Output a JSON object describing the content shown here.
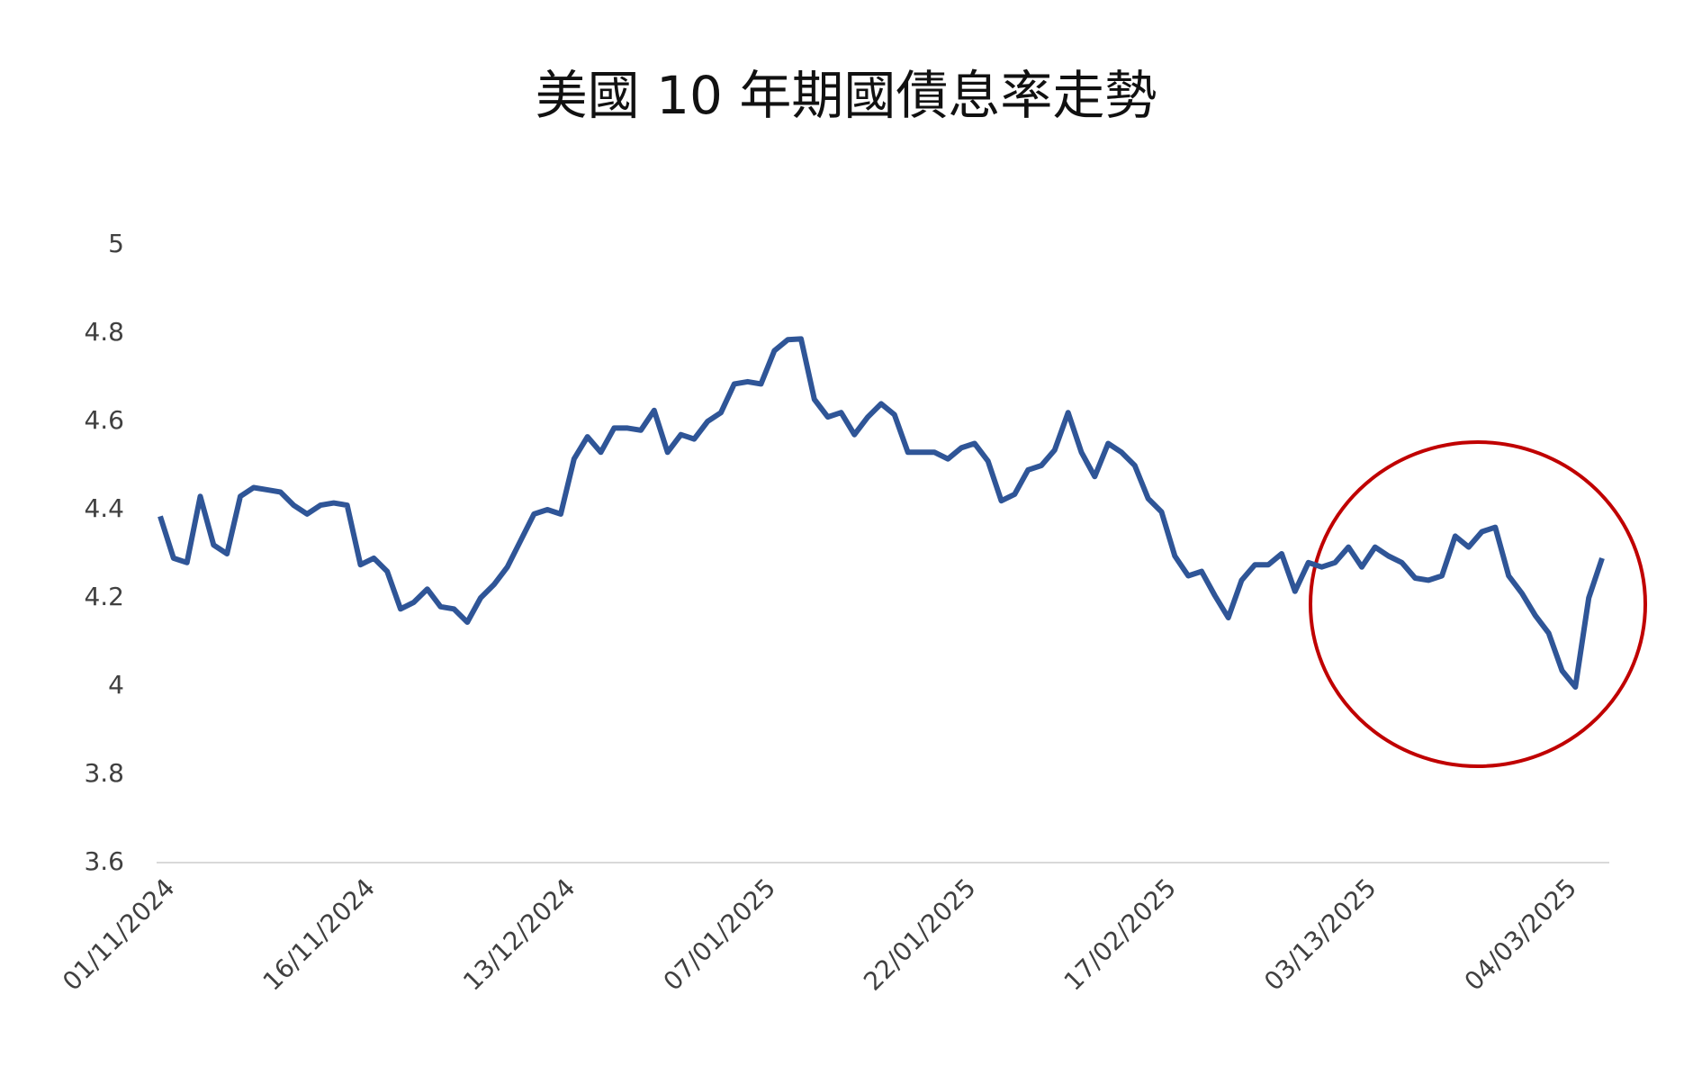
{
  "chart_data": {
    "type": "line",
    "title": "美國 10 年期國債息率走勢",
    "categories": [
      "01/11/2024",
      null,
      null,
      null,
      null,
      null,
      null,
      null,
      null,
      null,
      null,
      null,
      null,
      null,
      null,
      "16/11/2024",
      null,
      null,
      null,
      null,
      null,
      null,
      null,
      null,
      null,
      null,
      null,
      null,
      null,
      null,
      "13/12/2024",
      null,
      null,
      null,
      null,
      null,
      null,
      null,
      null,
      null,
      null,
      null,
      null,
      null,
      null,
      "07/01/2025",
      null,
      null,
      null,
      null,
      null,
      null,
      null,
      null,
      null,
      null,
      null,
      null,
      null,
      null,
      "22/01/2025",
      null,
      null,
      null,
      null,
      null,
      null,
      null,
      null,
      null,
      null,
      null,
      null,
      null,
      null,
      "17/02/2025",
      null,
      null,
      null,
      null,
      null,
      null,
      null,
      null,
      null,
      null,
      null,
      null,
      null,
      null,
      "03/13/2025",
      null,
      null,
      null,
      null,
      null,
      null,
      null,
      null,
      null,
      null,
      null,
      null,
      null,
      null,
      "04/03/2025",
      null,
      null,
      null
    ],
    "series": [
      {
        "color": "#2f5597",
        "values": [
          4.385,
          4.29,
          4.28,
          4.43,
          4.32,
          4.3,
          4.43,
          4.45,
          4.445,
          4.44,
          4.41,
          4.39,
          4.41,
          4.415,
          4.41,
          4.275,
          4.29,
          4.26,
          4.175,
          4.19,
          4.22,
          4.18,
          4.175,
          4.145,
          4.2,
          4.23,
          4.27,
          4.33,
          4.39,
          4.4,
          4.39,
          4.515,
          4.565,
          4.53,
          4.585,
          4.585,
          4.58,
          4.625,
          4.53,
          4.57,
          4.56,
          4.6,
          4.62,
          4.685,
          4.69,
          4.685,
          4.76,
          4.785,
          4.787,
          4.65,
          4.61,
          4.62,
          4.57,
          4.61,
          4.64,
          4.615,
          4.53,
          4.53,
          4.53,
          4.515,
          4.54,
          4.55,
          4.51,
          4.42,
          4.435,
          4.49,
          4.5,
          4.535,
          4.62,
          4.53,
          4.475,
          4.55,
          4.53,
          4.5,
          4.425,
          4.395,
          4.295,
          4.25,
          4.26,
          4.205,
          4.155,
          4.24,
          4.275,
          4.275,
          4.3,
          4.215,
          4.28,
          4.27,
          4.28,
          4.315,
          4.27,
          4.315,
          4.295,
          4.28,
          4.245,
          4.24,
          4.25,
          4.34,
          4.315,
          4.35,
          4.36,
          4.25,
          4.21,
          4.16,
          4.12,
          4.035,
          3.998,
          4.2,
          4.29
        ]
      }
    ],
    "ylim": [
      3.6,
      5
    ],
    "yticks": [
      {
        "value": 3.6,
        "label": "3.6"
      },
      {
        "value": 3.8,
        "label": "3.8"
      },
      4,
      {
        "value": 4.2,
        "label": "4.2"
      },
      {
        "value": 4.4,
        "label": "4.4"
      },
      {
        "value": 4.6,
        "label": "4.6"
      },
      {
        "value": 4.8,
        "label": "4.8"
      },
      5
    ],
    "grid": false
  }
}
